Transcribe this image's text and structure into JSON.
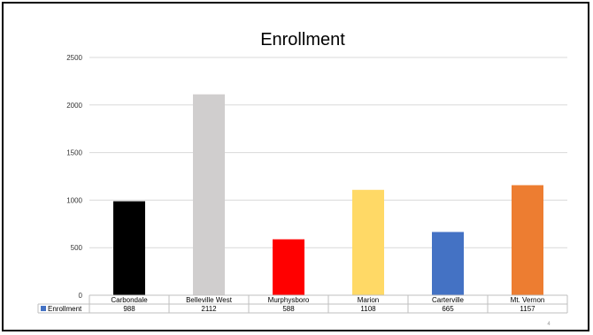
{
  "chart_data": {
    "type": "bar",
    "title": "Enrollment",
    "categories": [
      "Carbondale",
      "Belleville West",
      "Murphysboro",
      "Marion",
      "Carterville",
      "Mt. Vernon"
    ],
    "series": [
      {
        "name": "Enrollment",
        "values": [
          988,
          2112,
          588,
          1108,
          665,
          1157
        ]
      }
    ],
    "bar_colors": [
      "#000000",
      "#D0CECE",
      "#FF0000",
      "#FFD966",
      "#4472C4",
      "#ED7D31"
    ],
    "legend_color": "#4472C4",
    "ylim": [
      0,
      2500
    ],
    "yticks": [
      0,
      500,
      1000,
      1500,
      2000,
      2500
    ],
    "grid": true,
    "data_table": true
  },
  "page_number": "4"
}
